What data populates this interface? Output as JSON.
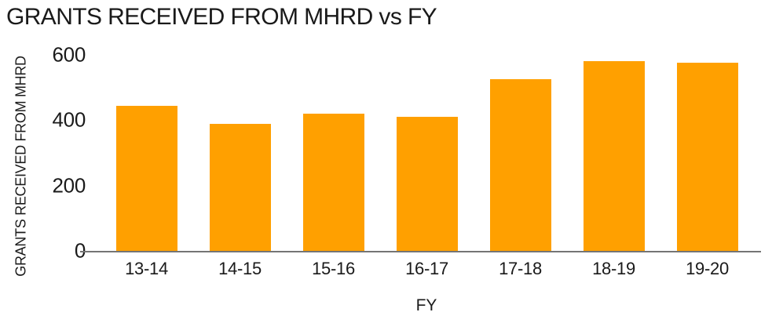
{
  "chart_data": {
    "type": "bar",
    "title": "GRANTS RECEIVED FROM MHRD vs FY",
    "xlabel": "FY",
    "ylabel": "GRANTS RECEIVED FROM MHRD",
    "categories": [
      "13-14",
      "14-15",
      "15-16",
      "16-17",
      "17-18",
      "18-19",
      "19-20"
    ],
    "values": [
      445,
      390,
      420,
      410,
      525,
      580,
      575
    ],
    "yticks": [
      0,
      200,
      400,
      600
    ],
    "ylim": [
      0,
      600
    ],
    "grid": false,
    "legend": false,
    "bar_color": "#ffa000",
    "axis_color": "#757575",
    "text_color": "#1a1a1a"
  }
}
